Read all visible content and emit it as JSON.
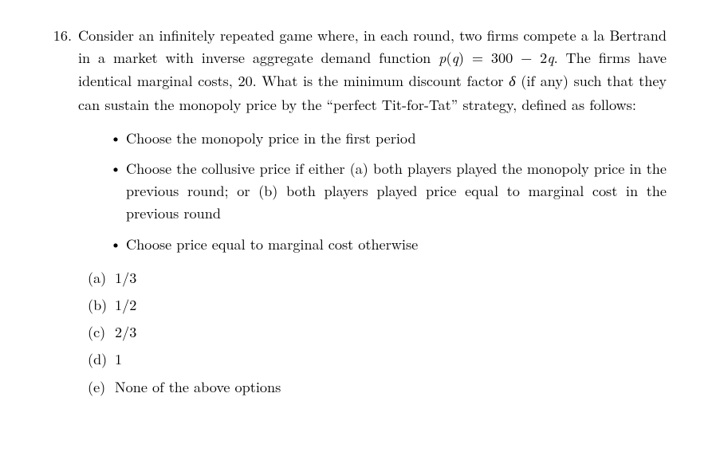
{
  "question": {
    "number": "16.",
    "text_a": "Consider an infinitely repeated game where, in each round, two firms compete a la Bertrand in a market with inverse aggregate demand function ",
    "math1_p": "p",
    "math1_open": "(",
    "math1_q": "q",
    "math1_close": ") = 300 − 2",
    "math1_q2": "q",
    "text_b": ". The firms have identical marginal costs, 20. What is the minimum discount factor ",
    "delta": "δ",
    "text_c": " (if any) such that they can sustain the monopoly price by the “perfect Tit-for-Tat” strategy, defined as follows:"
  },
  "bullets": [
    {
      "text": "Choose the monopoly price in the first period"
    },
    {
      "text": "Choose the collusive price if either (a) both players played the monopoly price in the previous round; or (b) both players played price equal to marginal cost in the previous round"
    },
    {
      "text": "Choose price equal to marginal cost otherwise"
    }
  ],
  "options": [
    {
      "label": "(a)",
      "text": "1/3"
    },
    {
      "label": "(b)",
      "text": "1/2"
    },
    {
      "label": "(c)",
      "text": "2/3"
    },
    {
      "label": "(d)",
      "text": "1"
    },
    {
      "label": "(e)",
      "text": "None of the above options"
    }
  ],
  "style": {
    "background": "#ffffff",
    "text_color": "#000000",
    "font_size_pt": 13.7,
    "line_height": 1.55,
    "bullet_char": "•"
  }
}
